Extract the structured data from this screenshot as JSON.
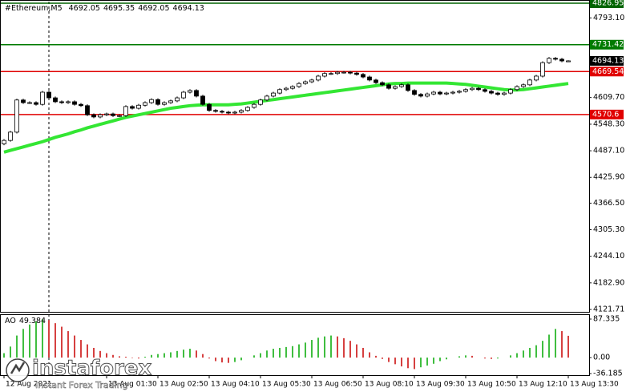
{
  "chart_data": [
    {
      "type": "candlestick",
      "title": "#Ethereum,M5",
      "xlim": [
        -0.5,
        91.25
      ],
      "ylim": [
        4121.71,
        4826.95
      ],
      "yticks": [
        {
          "value": 4793.1,
          "label": "4793.10"
        },
        {
          "value": 4609.7,
          "label": "4609.70"
        },
        {
          "value": 4548.3,
          "label": "4548.30"
        },
        {
          "value": 4487.1,
          "label": "4487.10"
        },
        {
          "value": 4425.9,
          "label": "4425.90"
        },
        {
          "value": 4366.5,
          "label": "4366.50"
        },
        {
          "value": 4305.3,
          "label": "4305.30"
        },
        {
          "value": 4244.1,
          "label": "4244.10"
        },
        {
          "value": 4182.9,
          "label": "4182.90"
        },
        4121.71
      ],
      "xticks": [
        {
          "value": 0,
          "label": "12 Aug 2021"
        },
        {
          "value": 16,
          "label": "13 Aug 01:30"
        },
        {
          "value": 24,
          "label": "13 Aug 02:50"
        },
        {
          "value": 32,
          "label": "13 Aug 04:10"
        },
        {
          "value": 40,
          "label": "13 Aug 05:30"
        },
        {
          "value": 48,
          "label": "13 Aug 06:50"
        },
        {
          "value": 56,
          "label": "13 Aug 08:10"
        },
        {
          "value": 64,
          "label": "13 Aug 09:30"
        },
        {
          "value": 72,
          "label": "13 Aug 10:50"
        },
        {
          "value": 80,
          "label": "13 Aug 12:10"
        },
        {
          "value": 88,
          "label": "13 Aug 13:30"
        }
      ],
      "levels": [
        {
          "value": 4826.95,
          "color": "#006400"
        },
        {
          "value": 4731.42,
          "color": "#007a00"
        },
        {
          "value": 4669.54,
          "color": "#e00000"
        },
        {
          "value": 4570.6,
          "color": "#e00000"
        }
      ],
      "up_color": "#ffffff",
      "down_color": "#000000",
      "ma_color": "#33e633",
      "open": [
        4503,
        4511,
        4530,
        4604,
        4598,
        4598,
        4594,
        4622,
        4609,
        4600,
        4598,
        4600,
        4594,
        4591,
        4570,
        4565,
        4570,
        4572,
        4568,
        4568,
        4589,
        4585,
        4592,
        4598,
        4605,
        4594,
        4598,
        4602,
        4609,
        4622,
        4626,
        4613,
        4594,
        4580,
        4578,
        4576,
        4574,
        4576,
        4580,
        4587,
        4594,
        4604,
        4613,
        4620,
        4628,
        4631,
        4635,
        4642,
        4646,
        4650,
        4659,
        4665,
        4665,
        4668,
        4668,
        4666,
        4663,
        4657,
        4650,
        4644,
        4639,
        4631,
        4635,
        4639,
        4626,
        4617,
        4613,
        4618,
        4622,
        4618,
        4620,
        4622,
        4624,
        4628,
        4631,
        4628,
        4624,
        4620,
        4617,
        4620,
        4628,
        4635,
        4639,
        4650,
        4659,
        4690,
        4700,
        4698,
        4692.05
      ],
      "high": [
        4514,
        4533,
        4607,
        4607,
        4601,
        4601,
        4625,
        4625,
        4612,
        4603,
        4603,
        4603,
        4597,
        4594,
        4573,
        4573,
        4575,
        4575,
        4571,
        4592,
        4592,
        4595,
        4601,
        4608,
        4608,
        4601,
        4605,
        4612,
        4625,
        4629,
        4629,
        4616,
        4597,
        4583,
        4581,
        4579,
        4579,
        4583,
        4590,
        4597,
        4607,
        4616,
        4623,
        4631,
        4634,
        4638,
        4645,
        4649,
        4653,
        4662,
        4668,
        4668,
        4671,
        4671,
        4671,
        4669,
        4666,
        4660,
        4653,
        4647,
        4642,
        4638,
        4642,
        4642,
        4629,
        4620,
        4621,
        4625,
        4625,
        4623,
        4625,
        4627,
        4631,
        4634,
        4634,
        4631,
        4627,
        4623,
        4623,
        4631,
        4638,
        4642,
        4653,
        4662,
        4693,
        4703,
        4703,
        4701,
        4695.35
      ],
      "low": [
        4500,
        4508,
        4527,
        4595,
        4595,
        4591,
        4591,
        4606,
        4597,
        4595,
        4595,
        4591,
        4588,
        4567,
        4562,
        4562,
        4567,
        4565,
        4565,
        4565,
        4582,
        4582,
        4589,
        4595,
        4591,
        4591,
        4595,
        4599,
        4606,
        4619,
        4610,
        4591,
        4577,
        4575,
        4573,
        4571,
        4571,
        4573,
        4577,
        4584,
        4591,
        4601,
        4610,
        4617,
        4625,
        4628,
        4632,
        4639,
        4643,
        4647,
        4656,
        4662,
        4662,
        4665,
        4663,
        4660,
        4654,
        4647,
        4641,
        4636,
        4628,
        4628,
        4632,
        4623,
        4614,
        4610,
        4610,
        4615,
        4615,
        4615,
        4617,
        4619,
        4621,
        4625,
        4625,
        4621,
        4617,
        4614,
        4614,
        4617,
        4625,
        4632,
        4636,
        4647,
        4656,
        4687,
        4695,
        4691,
        4692.05
      ],
      "close": [
        4511,
        4530,
        4604,
        4598,
        4598,
        4594,
        4622,
        4609,
        4600,
        4598,
        4600,
        4594,
        4591,
        4570,
        4565,
        4570,
        4572,
        4568,
        4568,
        4589,
        4585,
        4592,
        4598,
        4605,
        4594,
        4598,
        4602,
        4609,
        4622,
        4626,
        4613,
        4594,
        4580,
        4578,
        4576,
        4574,
        4576,
        4580,
        4587,
        4594,
        4604,
        4613,
        4620,
        4628,
        4631,
        4635,
        4642,
        4646,
        4650,
        4659,
        4665,
        4665,
        4668,
        4668,
        4666,
        4663,
        4657,
        4650,
        4644,
        4639,
        4631,
        4635,
        4639,
        4626,
        4617,
        4613,
        4618,
        4622,
        4618,
        4620,
        4622,
        4624,
        4628,
        4631,
        4628,
        4624,
        4620,
        4617,
        4620,
        4628,
        4635,
        4639,
        4650,
        4659,
        4690,
        4700,
        4698,
        4694,
        4694.13
      ],
      "ma_values": [
        4484,
        4488,
        4492,
        4496,
        4500,
        4504,
        4508,
        4513,
        4518,
        4522,
        4526,
        4531,
        4535,
        4540,
        4544,
        4548,
        4552,
        4556,
        4560,
        4564,
        4567,
        4570,
        4573,
        4576,
        4579,
        4582,
        4585,
        4587,
        4589,
        4591,
        4592,
        4593,
        4593,
        4593,
        4593,
        4593,
        4594,
        4595,
        4597,
        4599,
        4601,
        4603,
        4605,
        4607,
        4609,
        4611,
        4613,
        4615,
        4617,
        4619,
        4621,
        4623,
        4625,
        4627,
        4629,
        4631,
        4633,
        4635,
        4637,
        4639,
        4641,
        4642,
        4642,
        4643,
        4643,
        4643,
        4643,
        4643,
        4643,
        4643,
        4642,
        4641,
        4640,
        4638,
        4636,
        4634,
        4632,
        4630,
        4628,
        4627,
        4627,
        4628,
        4630,
        4632,
        4634,
        4636,
        4638,
        4640,
        4642
      ],
      "watermark": "instaforex",
      "watermark_tagline": "Instant Forex Trading"
    },
    {
      "type": "bar",
      "label": "AO",
      "ylim": [
        -36.185,
        87.335
      ],
      "yticks": [
        87.335,
        {
          "value": 0,
          "label": "0.00"
        },
        -36.185
      ],
      "up_color": "#00a800",
      "down_color": "#c80000",
      "values": [
        10,
        25,
        50,
        65,
        75,
        82,
        87,
        85,
        78,
        70,
        60,
        50,
        40,
        30,
        22,
        15,
        10,
        6,
        3,
        2,
        -1,
        -2,
        2,
        6,
        8,
        10,
        12,
        15,
        18,
        20,
        16,
        8,
        -2,
        -8,
        -11,
        -12,
        -10,
        -6,
        0,
        5,
        10,
        16,
        20,
        22,
        24,
        26,
        30,
        34,
        40,
        45,
        48,
        50,
        48,
        44,
        38,
        30,
        22,
        12,
        4,
        -3,
        -10,
        -15,
        -20,
        -24,
        -26,
        -22,
        -18,
        -14,
        -8,
        -4,
        0,
        3,
        5,
        4,
        0,
        -2,
        -3,
        -2,
        0,
        5,
        10,
        16,
        22,
        28,
        38,
        52,
        65,
        60,
        49.384
      ]
    }
  ]
}
